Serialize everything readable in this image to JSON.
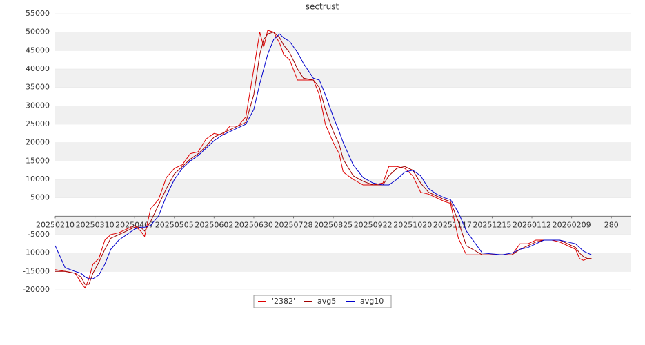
{
  "chart_data": {
    "type": "line",
    "title": "sectrust",
    "x": [
      0,
      5,
      10,
      13,
      15,
      17,
      19,
      22,
      25,
      28,
      32,
      36,
      40,
      43,
      45,
      48,
      52,
      56,
      60,
      64,
      68,
      72,
      76,
      80,
      84,
      88,
      92,
      96,
      100,
      103,
      105,
      107,
      110,
      113,
      115,
      118,
      122,
      125,
      130,
      133,
      136,
      140,
      143,
      145,
      150,
      155,
      160,
      165,
      168,
      172,
      176,
      180,
      184,
      188,
      192,
      196,
      199,
      203,
      207,
      215,
      225,
      230,
      234,
      238,
      242,
      246,
      250,
      254,
      258,
      262,
      264,
      266,
      268,
      270
    ],
    "series": [
      {
        "name": "'2382'",
        "color": "#e00000",
        "values": [
          -14500,
          -15000,
          -15500,
          -18000,
          -19500,
          -17000,
          -13000,
          -11500,
          -6500,
          -5000,
          -4500,
          -3500,
          -2500,
          -4000,
          -5500,
          2000,
          4500,
          10500,
          13000,
          14000,
          17000,
          17500,
          21000,
          22500,
          22000,
          24500,
          24500,
          27000,
          40000,
          50000,
          46000,
          50500,
          50000,
          47000,
          44000,
          42500,
          37000,
          37000,
          37000,
          33000,
          25000,
          20000,
          17000,
          12000,
          10000,
          8500,
          8500,
          9000,
          13500,
          13500,
          13000,
          11000,
          6500,
          6000,
          5000,
          4000,
          3500,
          -6000,
          -10500,
          -10500,
          -10500,
          -10500,
          -7500,
          -7500,
          -6500,
          -6500,
          -6500,
          -7000,
          -8000,
          -9000,
          -11500,
          -12000,
          -11500,
          -11500
        ]
      },
      {
        "name": "avg5",
        "color": "#a00000",
        "values": [
          -15000,
          -15000,
          -15500,
          -16500,
          -18500,
          -18500,
          -15500,
          -12500,
          -9000,
          -6000,
          -5000,
          -4000,
          -3000,
          -3000,
          -4000,
          -1500,
          3000,
          7500,
          11500,
          13500,
          15500,
          17000,
          19000,
          21500,
          22500,
          23500,
          24500,
          25500,
          33000,
          44000,
          48000,
          49500,
          50000,
          48500,
          46500,
          44500,
          40000,
          37500,
          37000,
          35000,
          29000,
          23000,
          19500,
          15500,
          11000,
          9500,
          8500,
          8500,
          11000,
          13000,
          13500,
          12500,
          9000,
          6500,
          5500,
          4500,
          4000,
          -1500,
          -8000,
          -10500,
          -10500,
          -10500,
          -9000,
          -8000,
          -7000,
          -6500,
          -6500,
          -6500,
          -7500,
          -8500,
          -10000,
          -11000,
          -11500,
          -11500
        ]
      },
      {
        "name": "avg10",
        "color": "#0000cc",
        "values": [
          -8000,
          -14000,
          -15000,
          -15500,
          -16500,
          -17000,
          -17000,
          -16000,
          -13000,
          -9000,
          -6500,
          -5000,
          -3500,
          -3000,
          -3000,
          -2500,
          0,
          5500,
          10000,
          13000,
          15000,
          16500,
          18500,
          20500,
          22000,
          23000,
          24000,
          25000,
          29000,
          36000,
          40000,
          44000,
          48000,
          49500,
          48500,
          47500,
          44500,
          41500,
          37500,
          37000,
          33000,
          27000,
          23000,
          20000,
          14000,
          10500,
          9000,
          8500,
          8500,
          10000,
          12000,
          12500,
          11000,
          7500,
          6000,
          5000,
          4500,
          1000,
          -4000,
          -10000,
          -10500,
          -10000,
          -9000,
          -8500,
          -7500,
          -6500,
          -6500,
          -6500,
          -7000,
          -7500,
          -8500,
          -9500,
          -10000,
          -10500
        ]
      }
    ],
    "xlim": [
      0,
      290
    ],
    "xticks": [
      {
        "value": 0,
        "label": "20250210"
      },
      {
        "value": 20,
        "label": "20250310"
      },
      {
        "value": 40,
        "label": "20250407"
      },
      {
        "value": 60,
        "label": "20250505"
      },
      {
        "value": 80,
        "label": "20250602"
      },
      {
        "value": 100,
        "label": "20250630"
      },
      {
        "value": 120,
        "label": "20250728"
      },
      {
        "value": 140,
        "label": "20250825"
      },
      {
        "value": 160,
        "label": "20250922"
      },
      {
        "value": 180,
        "label": "20251020"
      },
      {
        "value": 200,
        "label": "20251117"
      },
      {
        "value": 220,
        "label": "20251215"
      },
      {
        "value": 240,
        "label": "20260112"
      },
      {
        "value": 260,
        "label": "20260209"
      },
      280
    ],
    "ylim": [
      -20000,
      55000
    ],
    "yticks": [
      -20000,
      -15000,
      -10000,
      -5000,
      5000,
      10000,
      15000,
      20000,
      25000,
      30000,
      35000,
      40000,
      45000,
      50000,
      55000
    ],
    "grid": true,
    "legend": "bottom"
  }
}
